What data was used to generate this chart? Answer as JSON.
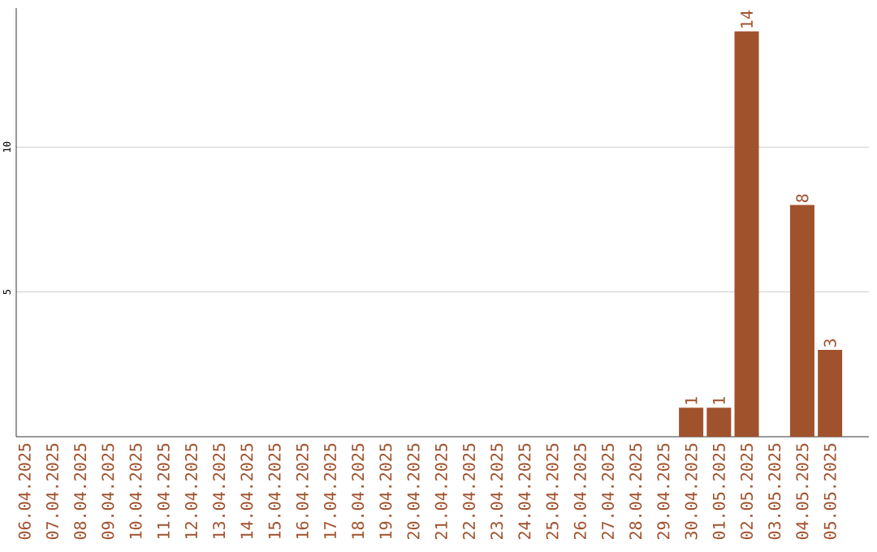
{
  "chart_data": {
    "type": "bar",
    "categories": [
      "06.04.2025",
      "07.04.2025",
      "08.04.2025",
      "09.04.2025",
      "10.04.2025",
      "11.04.2025",
      "12.04.2025",
      "13.04.2025",
      "14.04.2025",
      "15.04.2025",
      "16.04.2025",
      "17.04.2025",
      "18.04.2025",
      "19.04.2025",
      "20.04.2025",
      "21.04.2025",
      "22.04.2025",
      "23.04.2025",
      "24.04.2025",
      "25.04.2025",
      "26.04.2025",
      "27.04.2025",
      "28.04.2025",
      "29.04.2025",
      "30.04.2025",
      "01.05.2025",
      "02.05.2025",
      "03.05.2025",
      "04.05.2025",
      "05.05.2025"
    ],
    "values": [
      0,
      0,
      0,
      0,
      0,
      0,
      0,
      0,
      0,
      0,
      0,
      0,
      0,
      0,
      0,
      0,
      0,
      0,
      0,
      0,
      0,
      0,
      0,
      0,
      1,
      1,
      14,
      0,
      8,
      3
    ],
    "value_labels": [
      null,
      null,
      null,
      null,
      null,
      null,
      null,
      null,
      null,
      null,
      null,
      null,
      null,
      null,
      null,
      null,
      null,
      null,
      null,
      null,
      null,
      null,
      null,
      null,
      "1",
      "1",
      "14",
      null,
      "8",
      "3"
    ],
    "color": "#a0522d",
    "ylim": [
      0,
      14.8
    ],
    "yticks": [
      5,
      10
    ],
    "grid": "y"
  }
}
